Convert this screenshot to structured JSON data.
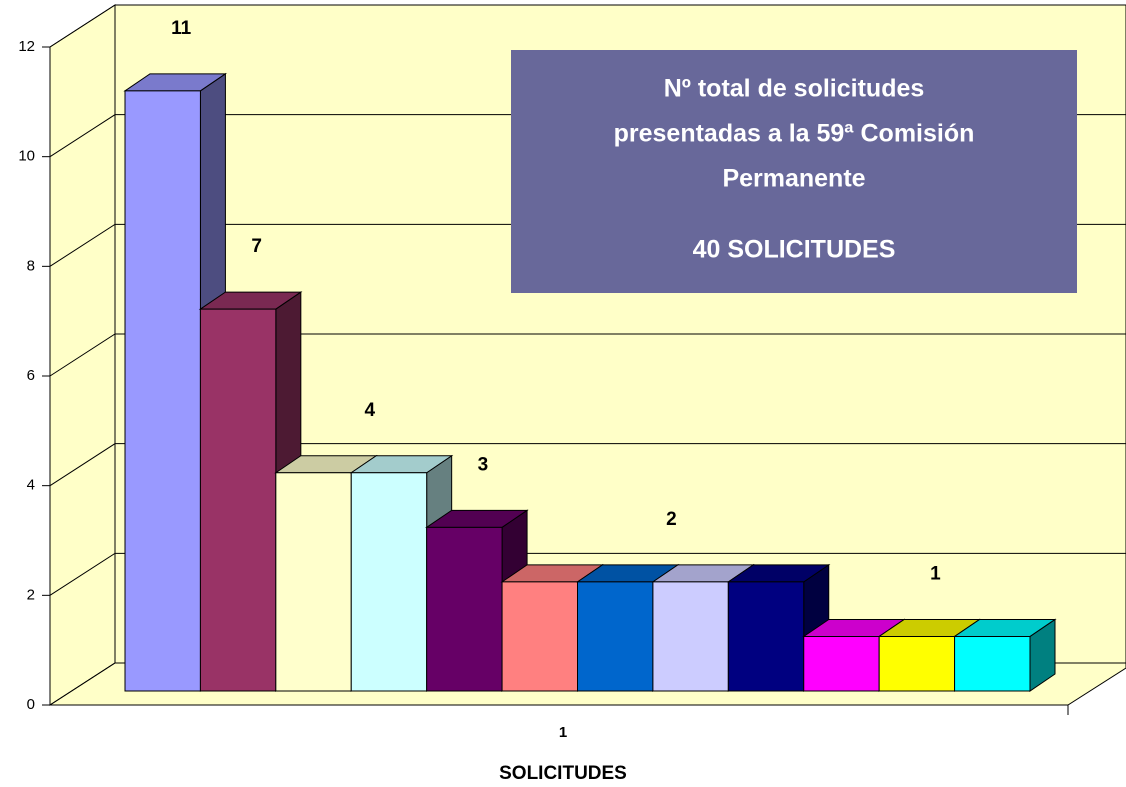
{
  "chart_data": {
    "type": "bar3d",
    "categories": [
      "1"
    ],
    "x_label": "SOLICITUDES",
    "series": [
      {
        "color": "#9999ff",
        "values": [
          11
        ]
      },
      {
        "color": "#993366",
        "values": [
          7
        ]
      },
      {
        "color": "#ffffcc",
        "values": [
          4
        ]
      },
      {
        "color": "#ccffff",
        "values": [
          4
        ]
      },
      {
        "color": "#660066",
        "values": [
          3
        ]
      },
      {
        "color": "#ff8080",
        "values": [
          2
        ]
      },
      {
        "color": "#0066cc",
        "values": [
          2
        ]
      },
      {
        "color": "#ccccff",
        "values": [
          2
        ]
      },
      {
        "color": "#000080",
        "values": [
          2
        ]
      },
      {
        "color": "#ff00ff",
        "values": [
          1
        ]
      },
      {
        "color": "#ffff00",
        "values": [
          1
        ]
      },
      {
        "color": "#00ffff",
        "values": [
          1
        ]
      }
    ],
    "ylim": [
      0,
      12
    ],
    "yticks": [
      0,
      2,
      4,
      6,
      8,
      10,
      12
    ],
    "grid": true,
    "wall_color": "#ffffc8",
    "annotation": {
      "lines": [
        "Nº  total de solicitudes",
        "presentadas a la 59ª Comisión",
        "Permanente"
      ],
      "total": "40 SOLICITUDES",
      "color": "#68689a"
    }
  }
}
